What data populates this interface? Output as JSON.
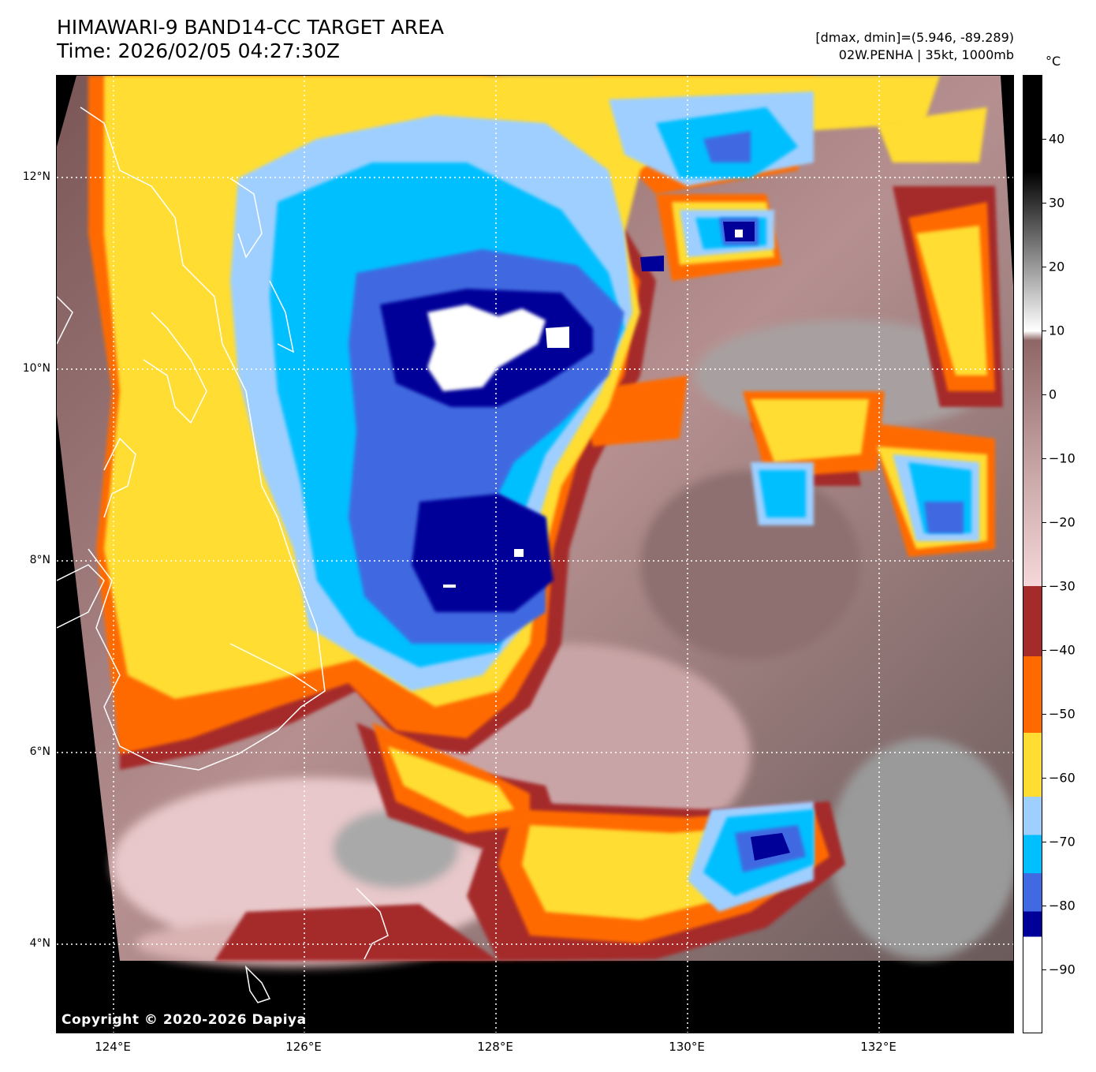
{
  "header": {
    "title": "HIMAWARI-9 BAND14-CC TARGET AREA",
    "time": "Time: 2026/02/05 04:27:30Z",
    "dmax_dmin": "[dmax, dmin]=(5.946, -89.289)",
    "storm_info": "02W.PENHA | 35kt, 1000mb"
  },
  "map": {
    "copyright": "Copyright © 2020-2026 Dapiya",
    "lat_labels": [
      "12°N",
      "10°N",
      "8°N",
      "6°N",
      "4°N"
    ],
    "lon_labels": [
      "124°E",
      "126°E",
      "128°E",
      "130°E",
      "132°E"
    ],
    "gridline_style": "white dotted"
  },
  "colorbar": {
    "unit": "°C",
    "ticks": [
      "40",
      "30",
      "20",
      "10",
      "0",
      "−10",
      "−20",
      "−30",
      "−40",
      "−50",
      "−60",
      "−70",
      "−80",
      "−90"
    ],
    "color_steps": [
      {
        "from": -100,
        "to": -85,
        "color": "#ffffff"
      },
      {
        "from": -85,
        "to": -81,
        "color": "#000099"
      },
      {
        "from": -81,
        "to": -75,
        "color": "#4169e1"
      },
      {
        "from": -75,
        "to": -69,
        "color": "#00bfff"
      },
      {
        "from": -69,
        "to": -63,
        "color": "#9fcfff"
      },
      {
        "from": -63,
        "to": -53,
        "color": "#ffdd33"
      },
      {
        "from": -53,
        "to": -41,
        "color": "#ff6a00"
      },
      {
        "from": -41,
        "to": -30,
        "color": "#a52a2a"
      }
    ],
    "warm_gradient": [
      "#f5d7da",
      "#c8a6a6",
      "#8f6666",
      "#ffffff",
      "#9a9a9a",
      "#000000"
    ]
  }
}
